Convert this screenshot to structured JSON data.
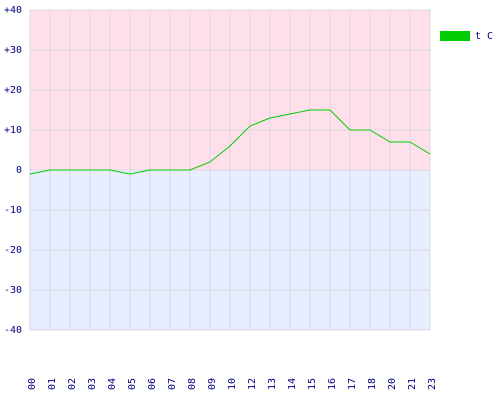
{
  "chart_data": {
    "type": "line",
    "categories": [
      "00",
      "01",
      "02",
      "03",
      "04",
      "05",
      "06",
      "07",
      "08",
      "09",
      "10",
      "12",
      "13",
      "14",
      "15",
      "16",
      "17",
      "18",
      "20",
      "21",
      "23"
    ],
    "series": [
      {
        "name": "t C",
        "color": "#00cc00",
        "values": [
          -1,
          0,
          0,
          0,
          0,
          -1,
          0,
          0,
          0,
          2,
          6,
          11,
          13,
          14,
          15,
          15,
          10,
          10,
          7,
          7,
          4
        ]
      }
    ],
    "ylim": [
      -40,
      40
    ],
    "yticks": [
      {
        "value": -40,
        "label": "-40"
      },
      {
        "value": -30,
        "label": "-30"
      },
      {
        "value": -20,
        "label": "-20"
      },
      {
        "value": -10,
        "label": "-10"
      },
      0,
      {
        "value": 10,
        "label": "+10"
      },
      {
        "value": 20,
        "label": "+20"
      },
      {
        "value": 30,
        "label": "+30"
      },
      {
        "value": 40,
        "label": "+40"
      }
    ],
    "grid": true,
    "legend": "top-right"
  }
}
